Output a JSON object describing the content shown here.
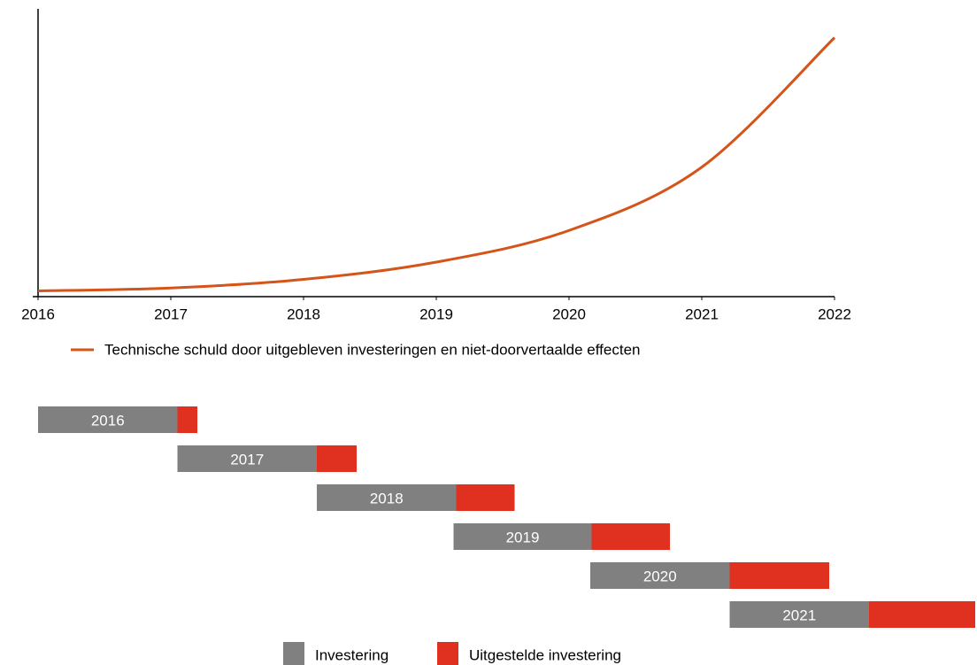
{
  "chart_data": [
    {
      "type": "line",
      "x": [
        2016,
        2017,
        2018,
        2019,
        2020,
        2021,
        2022
      ],
      "xlim": [
        2016,
        2022
      ],
      "xticks": [
        2016,
        2017,
        2018,
        2019,
        2020,
        2021,
        2022
      ],
      "ylim": [
        0,
        100
      ],
      "series": [
        {
          "name": "Technische schuld door uitgebleven investeringen en niet-doorvertaalde effecten",
          "color": "#d4541a",
          "values": [
            2,
            3,
            6,
            12,
            23,
            45,
            90
          ]
        }
      ]
    },
    {
      "type": "bar",
      "orientation": "horizontal",
      "categories": [
        "2016",
        "2017",
        "2018",
        "2019",
        "2020",
        "2021"
      ],
      "xlim": [
        2016,
        2022
      ],
      "start": [
        2016,
        2017.05,
        2018.1,
        2019.13,
        2020.16,
        2021.21
      ],
      "series": [
        {
          "name": "Investering",
          "color": "#808080",
          "values": [
            1.05,
            1.05,
            1.05,
            1.04,
            1.05,
            1.05
          ]
        },
        {
          "name": "Uitgestelde investering",
          "color": "#e03020",
          "values": [
            0.15,
            0.3,
            0.44,
            0.59,
            0.75,
            0.8
          ]
        }
      ]
    }
  ]
}
